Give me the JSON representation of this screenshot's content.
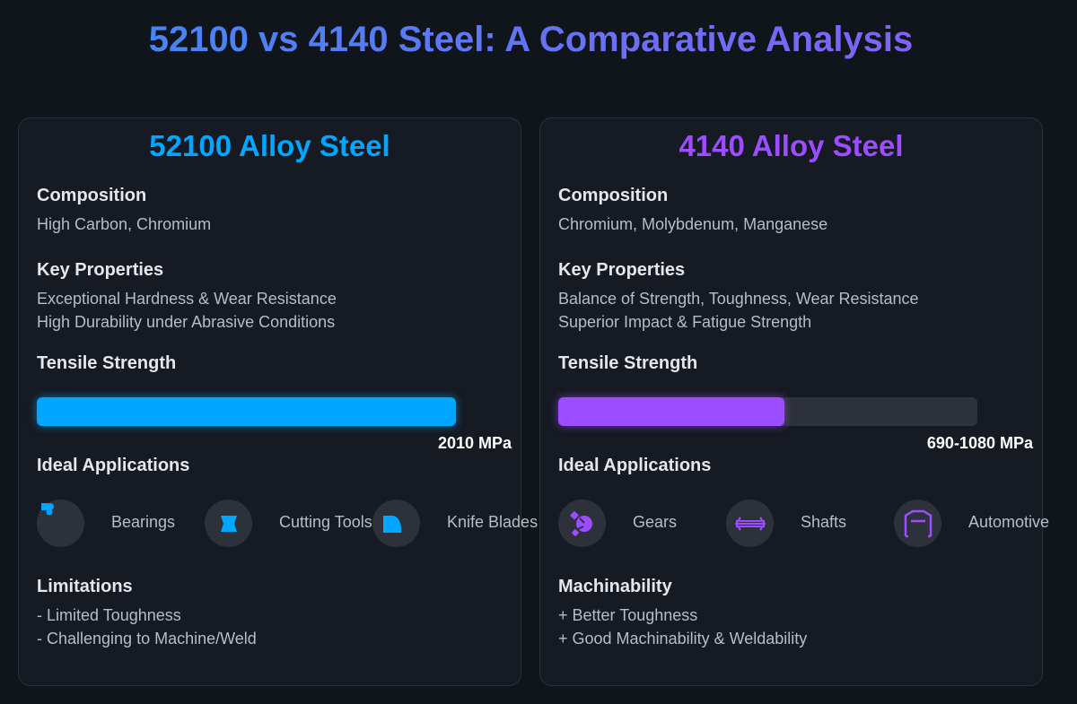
{
  "title": "52100 vs 4140 Steel: A Comparative Analysis",
  "colors": {
    "blue": "#00a6ff",
    "purple": "#9b4dff"
  },
  "cards": [
    {
      "title": "52100 Alloy Steel",
      "composition_label": "Composition",
      "composition": "High Carbon, Chromium",
      "properties_label": "Key Properties",
      "properties": [
        "Exceptional Hardness & Wear Resistance",
        "High Durability under Abrasive Conditions"
      ],
      "tensile_label": "Tensile Strength",
      "tensile_value": "2010 MPa",
      "tensile_fill_percent": 100,
      "apps_label": "Ideal Applications",
      "apps": [
        {
          "label": "Bearings",
          "icon": "bearing-icon"
        },
        {
          "label": "Cutting Tools",
          "icon": "cutting-tool-icon"
        },
        {
          "label": "Knife Blades",
          "icon": "knife-blade-icon"
        }
      ],
      "notes_label": "Limitations",
      "notes": [
        "- Limited Toughness",
        "- Challenging to Machine/Weld"
      ]
    },
    {
      "title": "4140 Alloy Steel",
      "composition_label": "Composition",
      "composition": "Chromium, Molybdenum, Manganese",
      "properties_label": "Key Properties",
      "properties": [
        "Balance of Strength, Toughness, Wear Resistance",
        "Superior Impact & Fatigue Strength"
      ],
      "tensile_label": "Tensile Strength",
      "tensile_value": "690-1080 MPa",
      "tensile_fill_percent": 54,
      "apps_label": "Ideal Applications",
      "apps": [
        {
          "label": "Gears",
          "icon": "gear-icon"
        },
        {
          "label": "Shafts",
          "icon": "shaft-icon"
        },
        {
          "label": "Automotive",
          "icon": "automotive-icon"
        }
      ],
      "notes_label": "Machinability",
      "notes": [
        "+ Better Toughness",
        "+ Good Machinability & Weldability"
      ]
    }
  ]
}
